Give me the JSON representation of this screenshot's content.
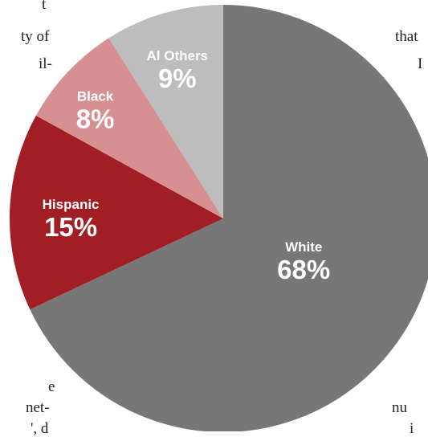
{
  "page_fragments": [
    "t",
    "ty of",
    "il-",
    "that",
    "I",
    "e",
    "net-",
    "', d",
    "nu",
    "i"
  ],
  "chart_data": {
    "type": "pie",
    "title": "",
    "slices": [
      {
        "label": "White",
        "value": 68,
        "display": "68%",
        "color": "#777778"
      },
      {
        "label": "Hispanic",
        "value": 15,
        "display": "15%",
        "color": "#a01e24"
      },
      {
        "label": "Black",
        "value": 8,
        "display": "8%",
        "color": "#d69092"
      },
      {
        "label": "Al Others",
        "value": 9,
        "display": "9%",
        "color": "#bdbdbd"
      }
    ],
    "start_angle_deg": 0,
    "direction": "clockwise"
  }
}
